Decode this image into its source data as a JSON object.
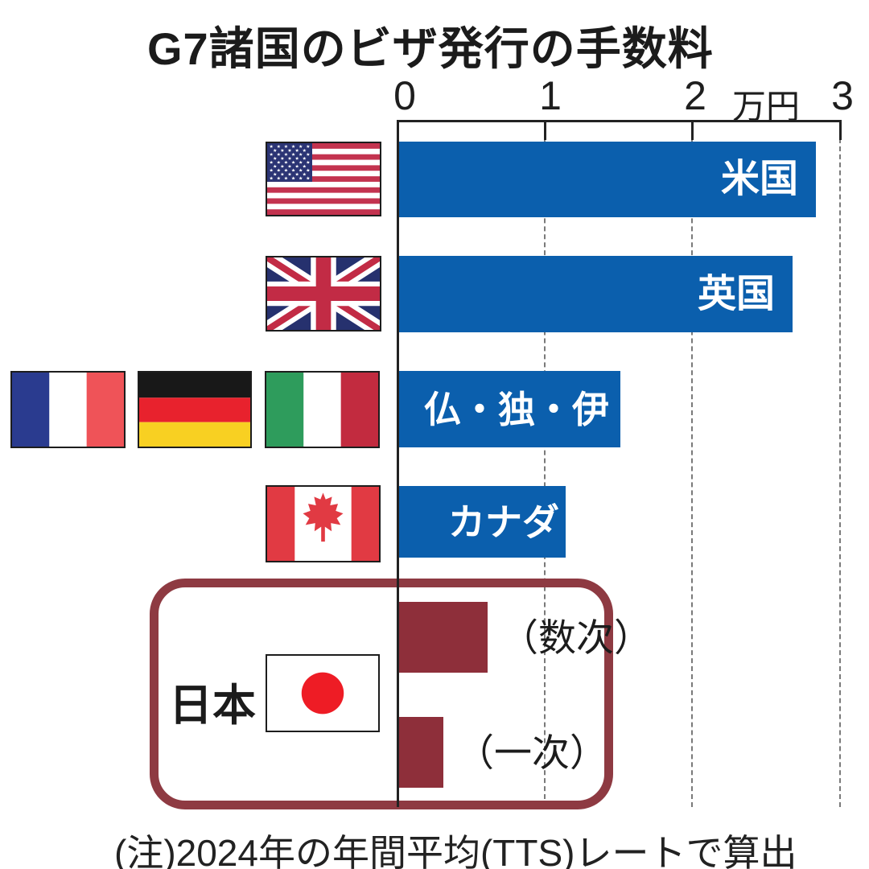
{
  "title": "G7諸国のビザ発行の手数料",
  "note": "(注)2024年の年間平均(TTS)レートで算出",
  "axis": {
    "ticks": [
      "0",
      "1",
      "2",
      "3"
    ],
    "unit": "万円"
  },
  "japan_group_label": "日本",
  "colors": {
    "bar_blue": "#0b5fad",
    "bar_maroon": "#8e2f3a",
    "box_border": "#8e3a42",
    "axis_line": "#222222",
    "gridline": "#7a7a7a",
    "text": "#1b1b1b"
  },
  "chart_data": {
    "type": "bar",
    "orientation": "horizontal",
    "title": "G7諸国のビザ発行の手数料",
    "unit": "万円",
    "xlim": [
      0,
      3
    ],
    "x_ticks": [
      0,
      1,
      2,
      3
    ],
    "grid": "dashed-vertical",
    "note": "(注)2024年の年間平均(TTS)レートで算出",
    "bars": [
      {
        "key": "usa",
        "label": "米国",
        "value": 2.83,
        "color_role": "bar_blue",
        "label_position": "inside"
      },
      {
        "key": "uk",
        "label": "英国",
        "value": 2.67,
        "color_role": "bar_blue",
        "label_position": "inside"
      },
      {
        "key": "france-germany-italy",
        "label": "仏・独・伊",
        "value": 1.5,
        "color_role": "bar_blue",
        "label_position": "inside"
      },
      {
        "key": "canada",
        "label": "カナダ",
        "value": 1.13,
        "color_role": "bar_blue",
        "label_position": "inside"
      },
      {
        "key": "japan-multiple-entry",
        "label": "（数次）",
        "value": 0.6,
        "color_role": "bar_maroon",
        "label_position": "outside"
      },
      {
        "key": "japan-single-entry",
        "label": "（一次）",
        "value": 0.3,
        "color_role": "bar_maroon",
        "label_position": "outside"
      }
    ]
  }
}
